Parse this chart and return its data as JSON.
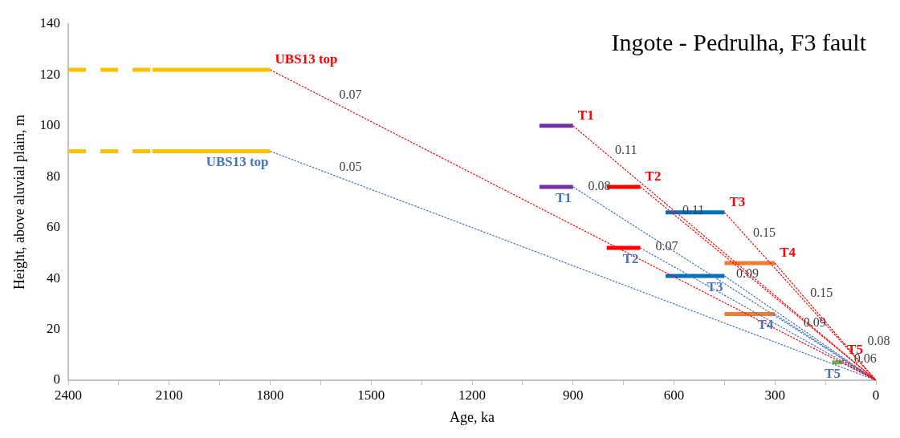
{
  "chart_data": {
    "type": "line",
    "title": "Ingote - Pedrulha, F3 fault",
    "xlabel": "Age, ka",
    "ylabel": "Height, above aluvial plain, m",
    "xlim": [
      2400,
      0
    ],
    "xticks": [
      0,
      {
        "value": 150,
        "label": null
      },
      300,
      {
        "value": 450,
        "label": null
      },
      600,
      {
        "value": 750,
        "label": null
      },
      900,
      {
        "value": 1050,
        "label": null
      },
      1200,
      {
        "value": 1350,
        "label": null
      },
      1500,
      {
        "value": 1650,
        "label": null
      },
      1800,
      {
        "value": 1950,
        "label": null
      },
      2100,
      {
        "value": 2250,
        "label": null
      },
      2400
    ],
    "ylim": [
      0,
      140
    ],
    "yticks": [
      0,
      20,
      40,
      60,
      80,
      100,
      120,
      140
    ],
    "grid": false,
    "legend": false,
    "marker": "none",
    "series": [
      {
        "color": "#ffc000",
        "line_style": "dashed",
        "x": [
          2400,
          2150
        ],
        "values": [
          122,
          122
        ]
      },
      {
        "color": "#ffc000",
        "line_style": "solid",
        "x": [
          2150,
          1800
        ],
        "values": [
          122,
          122
        ]
      },
      {
        "color": "#ffc000",
        "line_style": "dashed",
        "x": [
          2400,
          2150
        ],
        "values": [
          90,
          90
        ]
      },
      {
        "color": "#ffc000",
        "line_style": "solid",
        "x": [
          2150,
          1800
        ],
        "values": [
          90,
          90
        ]
      },
      {
        "color": "#7030a0",
        "line_style": "solid",
        "x": [
          1000,
          900
        ],
        "values": [
          100,
          100
        ]
      },
      {
        "color": "#7030a0",
        "line_style": "solid",
        "x": [
          1000,
          900
        ],
        "values": [
          76,
          76
        ]
      },
      {
        "color": "#ff0000",
        "line_style": "solid",
        "x": [
          800,
          700
        ],
        "values": [
          76,
          76
        ]
      },
      {
        "color": "#ff0000",
        "line_style": "solid",
        "x": [
          800,
          700
        ],
        "values": [
          52,
          52
        ]
      },
      {
        "color": "#0070c0",
        "line_style": "solid",
        "x": [
          625,
          450
        ],
        "values": [
          66,
          66
        ]
      },
      {
        "color": "#0070c0",
        "line_style": "solid",
        "x": [
          625,
          450
        ],
        "values": [
          41,
          41
        ]
      },
      {
        "color": "#ed7d31",
        "line_style": "solid",
        "x": [
          450,
          300
        ],
        "values": [
          46,
          46
        ]
      },
      {
        "color": "#ed7d31",
        "line_style": "solid",
        "x": [
          450,
          300
        ],
        "values": [
          26,
          26
        ]
      },
      {
        "color": "#70ad47",
        "line_style": "solid",
        "x": [
          130,
          100
        ],
        "values": [
          7,
          7
        ]
      },
      {
        "name": "UBS13 top",
        "color": "#ff0000",
        "line_style": "dotted",
        "x": [
          1800,
          0
        ],
        "values": [
          122,
          0
        ]
      },
      {
        "name": "T1",
        "color": "#ff0000",
        "line_style": "dotted",
        "x": [
          900,
          0
        ],
        "values": [
          100,
          0
        ]
      },
      {
        "name": "T2",
        "color": "#ff0000",
        "line_style": "dotted",
        "x": [
          700,
          0
        ],
        "values": [
          76,
          0
        ]
      },
      {
        "name": "T3",
        "color": "#ff0000",
        "line_style": "dotted",
        "x": [
          450,
          0
        ],
        "values": [
          66,
          0
        ]
      },
      {
        "name": "T4",
        "color": "#ff0000",
        "line_style": "dotted",
        "x": [
          300,
          0
        ],
        "values": [
          46,
          0
        ]
      },
      {
        "name": "T5",
        "color": "#ff0000",
        "line_style": "dotted",
        "x": [
          100,
          0
        ],
        "values": [
          8,
          0
        ]
      },
      {
        "name": "UBS13 top",
        "color": "#4472c4",
        "line_style": "dotted",
        "x": [
          1800,
          0
        ],
        "values": [
          90,
          0
        ]
      },
      {
        "name": "T1",
        "color": "#4472c4",
        "line_style": "dotted",
        "x": [
          900,
          0
        ],
        "values": [
          76,
          0
        ]
      },
      {
        "name": "T2",
        "color": "#4472c4",
        "line_style": "dotted",
        "x": [
          700,
          0
        ],
        "values": [
          52,
          0
        ]
      },
      {
        "name": "T3",
        "color": "#4472c4",
        "line_style": "dotted",
        "x": [
          450,
          0
        ],
        "values": [
          41,
          0
        ]
      },
      {
        "name": "T4",
        "color": "#4472c4",
        "line_style": "dotted",
        "x": [
          300,
          0
        ],
        "values": [
          26,
          0
        ]
      },
      {
        "name": "T5",
        "color": "#4472c4",
        "line_style": "dotted",
        "x": [
          100,
          0
        ],
        "values": [
          7,
          0
        ]
      }
    ],
    "annotations": [
      {
        "text": "0.07",
        "x": 1600,
        "y": 108.4
      },
      {
        "text": "0.05",
        "x": 1600,
        "y": 80
      },
      {
        "text": "0.11",
        "x": 780,
        "y": 86.7
      },
      {
        "text": "0.08",
        "x": 860,
        "y": 72.6
      },
      {
        "text": "0.11",
        "x": 580,
        "y": 63
      },
      {
        "text": "0.07",
        "x": 660,
        "y": 49
      },
      {
        "text": "0.15",
        "x": 370,
        "y": 54.3
      },
      {
        "text": "0.09",
        "x": 420,
        "y": 38.3
      },
      {
        "text": "0.15",
        "x": 200,
        "y": 30.7
      },
      {
        "text": "0.09",
        "x": 220,
        "y": 19.1
      },
      {
        "text": "0.06",
        "x": 70,
        "y": 4.9
      },
      {
        "text": "0.08",
        "x": 30,
        "y": 2.4
      }
    ]
  }
}
